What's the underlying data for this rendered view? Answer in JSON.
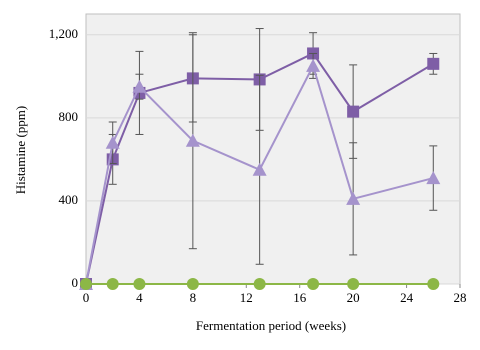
{
  "chart_data": {
    "type": "line",
    "x": [
      0,
      2,
      4,
      8,
      13,
      17,
      20,
      26
    ],
    "series": [
      {
        "color": "#7e5ea6",
        "marker": "square",
        "values": [
          0,
          600,
          920,
          990,
          985,
          1110,
          830,
          1060
        ],
        "errors": [
          0,
          120,
          200,
          210,
          245,
          100,
          225,
          50
        ]
      },
      {
        "color": "#a593cc",
        "marker": "triangle",
        "values": [
          0,
          680,
          950,
          690,
          550,
          1050,
          410,
          510
        ],
        "errors": [
          0,
          100,
          60,
          520,
          455,
          60,
          270,
          155
        ]
      },
      {
        "color": "#8cb746",
        "marker": "circle",
        "values": [
          0,
          0,
          0,
          0,
          0,
          0,
          0,
          0
        ]
      }
    ],
    "xlim": [
      0,
      28
    ],
    "xticks": [
      0,
      4,
      8,
      12,
      16,
      20,
      24,
      28
    ],
    "ylim": [
      0,
      1300
    ],
    "yticks": [
      0,
      400,
      800,
      {
        "value": 1200,
        "label": "1,200"
      }
    ],
    "xlabel": "Fermentation period (weeks)",
    "ylabel": "Histamine (ppm)",
    "grid": true
  }
}
